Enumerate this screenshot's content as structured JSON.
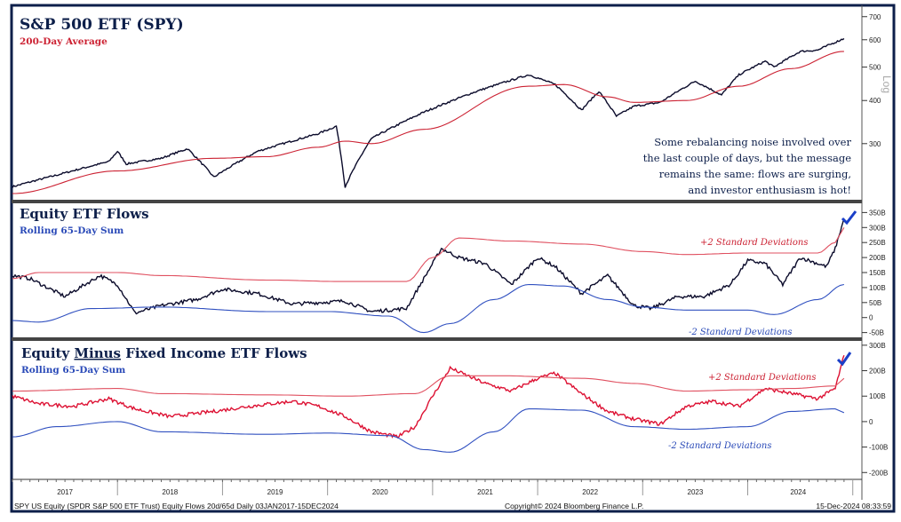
{
  "chart_data": [
    {
      "type": "line",
      "title": "S&P 500 ETF (SPY)",
      "subtitle": "200-Day Average",
      "yscale": "log",
      "ylim": [
        210,
        720
      ],
      "yticks": [
        300,
        400,
        500,
        600,
        700
      ],
      "axis_note": "Log",
      "annotation": [
        "Some rebalancing noise involved over",
        "the last couple of days, but the message",
        "remains the same: flows are surging,",
        "and investor enthusiasm is hot!"
      ],
      "series": [
        {
          "name": "SPY",
          "color": "#0a0a2a",
          "x": [
            "2017-01",
            "2017-06",
            "2017-12",
            "2018-01",
            "2018-02",
            "2018-06",
            "2018-09",
            "2018-12",
            "2019-05",
            "2019-12",
            "2020-02",
            "2020-03",
            "2020-06",
            "2020-12",
            "2021-06",
            "2021-12",
            "2022-03",
            "2022-06",
            "2022-08",
            "2022-10",
            "2022-12",
            "2023-03",
            "2023-07",
            "2023-10",
            "2023-12",
            "2024-03",
            "2024-04",
            "2024-07",
            "2024-09",
            "2024-12"
          ],
          "y": [
            225,
            243,
            266,
            285,
            262,
            272,
            290,
            240,
            285,
            321,
            337,
            225,
            310,
            370,
            425,
            475,
            445,
            375,
            425,
            360,
            385,
            395,
            455,
            415,
            475,
            520,
            500,
            555,
            560,
            605
          ]
        },
        {
          "name": "200-Day Average",
          "color": "#cc2233",
          "x": [
            "2017-01",
            "2018-01",
            "2018-12",
            "2019-06",
            "2019-12",
            "2020-03",
            "2020-06",
            "2020-12",
            "2021-12",
            "2022-04",
            "2022-09",
            "2022-12",
            "2023-06",
            "2023-12",
            "2024-06",
            "2024-12"
          ],
          "y": [
            215,
            250,
            272,
            275,
            293,
            305,
            300,
            330,
            440,
            445,
            410,
            395,
            400,
            440,
            495,
            555
          ]
        }
      ]
    },
    {
      "type": "line",
      "title": "Equity ETF Flows",
      "subtitle": "Rolling 65-Day Sum",
      "ylim": [
        -60,
        360
      ],
      "yticks": [
        "350B",
        "300B",
        "250B",
        "200B",
        "150B",
        "100B",
        "50B",
        "0",
        "-50B"
      ],
      "ytick_values": [
        350,
        300,
        250,
        200,
        150,
        100,
        50,
        0,
        -50
      ],
      "labels": {
        "upper": "+2 Standard Deviations",
        "lower": "-2 Standard Deviations"
      },
      "series": [
        {
          "name": "Equity ETF Flows",
          "color": "#0a0a2a",
          "x": [
            "2017-01",
            "2017-03",
            "2017-07",
            "2017-11",
            "2018-01",
            "2018-03",
            "2018-06",
            "2018-10",
            "2019-01",
            "2019-05",
            "2019-09",
            "2019-12",
            "2020-03",
            "2020-06",
            "2020-10",
            "2020-12",
            "2021-02",
            "2021-04",
            "2021-07",
            "2021-10",
            "2022-01",
            "2022-03",
            "2022-06",
            "2022-09",
            "2022-12",
            "2023-02",
            "2023-05",
            "2023-08",
            "2023-11",
            "2024-01",
            "2024-03",
            "2024-05",
            "2024-07",
            "2024-10",
            "2024-11",
            "2024-12"
          ],
          "y": [
            140,
            130,
            70,
            140,
            110,
            15,
            40,
            60,
            95,
            80,
            45,
            50,
            55,
            20,
            30,
            130,
            230,
            200,
            180,
            110,
            200,
            170,
            80,
            140,
            40,
            30,
            70,
            70,
            110,
            190,
            180,
            110,
            200,
            170,
            230,
            330
          ]
        },
        {
          "name": "+2 Standard Deviations",
          "color": "#e05060",
          "x": [
            "2017-01",
            "2017-04",
            "2018-01",
            "2018-06",
            "2019-06",
            "2020-03",
            "2020-10",
            "2021-01",
            "2021-04",
            "2021-10",
            "2022-06",
            "2023-01",
            "2023-06",
            "2024-01",
            "2024-09",
            "2024-11",
            "2024-12"
          ],
          "y": [
            130,
            150,
            150,
            140,
            125,
            120,
            120,
            200,
            265,
            255,
            245,
            220,
            210,
            215,
            215,
            250,
            300
          ]
        },
        {
          "name": "-2 Standard Deviations",
          "color": "#3050c0",
          "x": [
            "2017-01",
            "2017-04",
            "2017-10",
            "2018-06",
            "2019-06",
            "2020-01",
            "2020-08",
            "2020-12",
            "2021-03",
            "2021-08",
            "2021-12",
            "2022-04",
            "2022-09",
            "2023-01",
            "2023-06",
            "2024-01",
            "2024-04",
            "2024-09",
            "2024-12"
          ],
          "y": [
            -10,
            -15,
            30,
            35,
            20,
            20,
            5,
            -50,
            -20,
            60,
            110,
            105,
            60,
            35,
            25,
            25,
            10,
            60,
            110
          ]
        }
      ]
    },
    {
      "type": "line",
      "title_prefix": "Equity ",
      "title_underlined": "Minus",
      "title_suffix": " Fixed Income ETF Flows",
      "subtitle": "Rolling 65-Day Sum",
      "ylim": [
        -220,
        310
      ],
      "yticks": [
        "300B",
        "200B",
        "100B",
        "0",
        "-100B",
        "-200B"
      ],
      "ytick_values": [
        300,
        200,
        100,
        0,
        -100,
        -200
      ],
      "labels": {
        "upper": "+2 Standard Deviations",
        "lower": "-2 Standard Deviations"
      },
      "series": [
        {
          "name": "Equity Minus Fixed Income ETF Flows",
          "color": "#dd1133",
          "x": [
            "2017-01",
            "2017-04",
            "2017-08",
            "2017-12",
            "2018-03",
            "2018-07",
            "2018-12",
            "2019-04",
            "2019-09",
            "2019-12",
            "2020-03",
            "2020-06",
            "2020-09",
            "2020-11",
            "2021-01",
            "2021-03",
            "2021-07",
            "2021-10",
            "2022-01",
            "2022-03",
            "2022-06",
            "2022-09",
            "2022-12",
            "2023-03",
            "2023-06",
            "2023-09",
            "2023-12",
            "2024-03",
            "2024-06",
            "2024-09",
            "2024-11",
            "2024-12"
          ],
          "y": [
            100,
            70,
            60,
            90,
            50,
            20,
            40,
            60,
            80,
            60,
            20,
            -40,
            -60,
            -20,
            100,
            210,
            150,
            120,
            170,
            190,
            110,
            40,
            10,
            -10,
            60,
            80,
            60,
            130,
            110,
            90,
            130,
            260
          ]
        },
        {
          "name": "+2 Standard Deviations",
          "color": "#e05060",
          "x": [
            "2017-01",
            "2018-01",
            "2018-06",
            "2019-06",
            "2020-03",
            "2020-11",
            "2021-03",
            "2021-09",
            "2022-06",
            "2022-12",
            "2023-06",
            "2024-01",
            "2024-06",
            "2024-11",
            "2024-12"
          ],
          "y": [
            120,
            130,
            110,
            105,
            100,
            110,
            180,
            180,
            170,
            150,
            120,
            125,
            130,
            140,
            170
          ]
        },
        {
          "name": "-2 Standard Deviations",
          "color": "#3050c0",
          "x": [
            "2017-01",
            "2017-06",
            "2018-01",
            "2018-06",
            "2019-06",
            "2020-01",
            "2020-08",
            "2020-12",
            "2021-03",
            "2021-08",
            "2021-12",
            "2022-06",
            "2022-12",
            "2023-06",
            "2024-01",
            "2024-06",
            "2024-11",
            "2024-12"
          ],
          "y": [
            -60,
            -20,
            0,
            -40,
            -50,
            -45,
            -55,
            -110,
            -120,
            -40,
            50,
            45,
            -20,
            -30,
            -20,
            40,
            50,
            35
          ]
        }
      ]
    }
  ],
  "x_axis": {
    "ticks": [
      "2017",
      "2018",
      "2019",
      "2020",
      "2021",
      "2022",
      "2023",
      "2024"
    ],
    "range": [
      "2017-01-03",
      "2024-12-15"
    ]
  },
  "footer": {
    "left": "SPY US Equity (SPDR S&P 500 ETF Trust) Equity Flows 20d/65d  Daily 03JAN2017-15DEC2024",
    "center": "Copyright© 2024 Bloomberg Finance L.P.",
    "right": "15-Dec-2024 08:33:59"
  },
  "colors": {
    "frame": "#0d1f4a",
    "title": "#0d1f4a",
    "red": "#cc2233",
    "blue": "#2a4ab8",
    "check": "#1a3fc8"
  }
}
